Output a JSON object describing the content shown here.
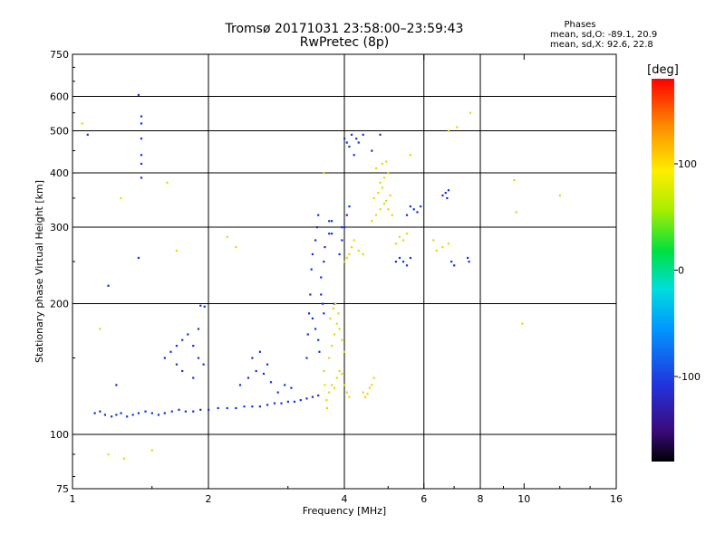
{
  "chart_data": {
    "type": "scatter",
    "title": "Tromsø 20171031 23:58:00–23:59:43",
    "subtitle": "RwPretec (8p)",
    "stats": {
      "title": "Phases",
      "o_line": "mean, sd,O: -89.1, 20.9",
      "x_line": "mean, sd,X:  92.6, 22.8"
    },
    "xlabel": "Frequency [MHz]",
    "ylabel": "Stationary phase Virtual Height [km]",
    "xscale": "log",
    "yscale": "log",
    "xlim": [
      1,
      16
    ],
    "ylim": [
      75,
      750
    ],
    "xticks": [
      1,
      2,
      4,
      6,
      8,
      10,
      16
    ],
    "xtick_labels": [
      "1",
      "2",
      "4",
      "6",
      "8",
      "10",
      "16"
    ],
    "xgrid": [
      2,
      4,
      6,
      8
    ],
    "yticks": [
      75,
      100,
      200,
      300,
      400,
      500,
      600,
      750
    ],
    "ytick_labels": [
      "75",
      "100",
      "200",
      "300",
      "400",
      "500",
      "600",
      "750"
    ],
    "ygrid": [
      100,
      200,
      300,
      400,
      500,
      600
    ],
    "colorbar": {
      "label": "[deg]",
      "range": [
        -180,
        180
      ],
      "ticks": [
        100,
        0,
        -100
      ],
      "tick_labels": [
        "100",
        "0",
        "-100"
      ]
    },
    "colors": {
      "o_mode": "#1030e0",
      "x_mode": "#e8d800"
    },
    "series": [
      {
        "mode": "O",
        "points": [
          [
            1.12,
            112
          ],
          [
            1.15,
            113
          ],
          [
            1.18,
            111
          ],
          [
            1.22,
            110
          ],
          [
            1.25,
            111
          ],
          [
            1.28,
            112
          ],
          [
            1.32,
            110
          ],
          [
            1.36,
            111
          ],
          [
            1.4,
            112
          ],
          [
            1.45,
            113
          ],
          [
            1.5,
            112
          ],
          [
            1.55,
            111
          ],
          [
            1.6,
            112
          ],
          [
            1.66,
            113
          ],
          [
            1.72,
            114
          ],
          [
            1.78,
            113
          ],
          [
            1.85,
            113
          ],
          [
            1.92,
            114
          ],
          [
            2.0,
            114
          ],
          [
            2.1,
            115
          ],
          [
            2.2,
            115
          ],
          [
            2.3,
            115
          ],
          [
            2.4,
            116
          ],
          [
            2.5,
            116
          ],
          [
            2.6,
            116
          ],
          [
            2.7,
            117
          ],
          [
            2.8,
            118
          ],
          [
            2.9,
            118
          ],
          [
            3.0,
            119
          ],
          [
            3.1,
            119
          ],
          [
            3.2,
            120
          ],
          [
            3.3,
            121
          ],
          [
            3.4,
            122
          ],
          [
            3.5,
            123
          ],
          [
            1.6,
            150
          ],
          [
            1.65,
            155
          ],
          [
            1.7,
            160
          ],
          [
            1.75,
            165
          ],
          [
            1.8,
            170
          ],
          [
            1.85,
            160
          ],
          [
            1.9,
            150
          ],
          [
            1.95,
            145
          ],
          [
            1.75,
            140
          ],
          [
            1.85,
            135
          ],
          [
            1.7,
            145
          ],
          [
            1.9,
            175
          ],
          [
            1.92,
            198
          ],
          [
            1.96,
            197
          ],
          [
            2.35,
            130
          ],
          [
            2.45,
            135
          ],
          [
            2.55,
            140
          ],
          [
            2.65,
            138
          ],
          [
            2.75,
            132
          ],
          [
            2.85,
            125
          ],
          [
            2.95,
            130
          ],
          [
            3.05,
            128
          ],
          [
            2.5,
            150
          ],
          [
            2.6,
            155
          ],
          [
            2.7,
            145
          ],
          [
            3.3,
            150
          ],
          [
            3.32,
            170
          ],
          [
            3.34,
            190
          ],
          [
            3.36,
            210
          ],
          [
            3.38,
            240
          ],
          [
            3.4,
            260
          ],
          [
            3.45,
            280
          ],
          [
            3.48,
            300
          ],
          [
            3.5,
            320
          ],
          [
            3.55,
            230
          ],
          [
            3.6,
            250
          ],
          [
            3.62,
            270
          ],
          [
            3.7,
            290
          ],
          [
            3.75,
            310
          ],
          [
            3.4,
            185
          ],
          [
            3.45,
            175
          ],
          [
            3.5,
            165
          ],
          [
            3.52,
            155
          ],
          [
            3.55,
            210
          ],
          [
            3.58,
            200
          ],
          [
            3.6,
            190
          ],
          [
            3.9,
            260
          ],
          [
            3.95,
            280
          ],
          [
            4.0,
            300
          ],
          [
            4.05,
            320
          ],
          [
            4.1,
            335
          ],
          [
            3.95,
            300
          ],
          [
            4.0,
            480
          ],
          [
            4.05,
            470
          ],
          [
            4.1,
            460
          ],
          [
            4.15,
            490
          ],
          [
            4.2,
            440
          ],
          [
            4.25,
            480
          ],
          [
            4.3,
            470
          ],
          [
            4.4,
            490
          ],
          [
            4.6,
            450
          ],
          [
            4.8,
            490
          ],
          [
            5.6,
            335
          ],
          [
            5.7,
            330
          ],
          [
            5.8,
            325
          ],
          [
            5.9,
            335
          ],
          [
            5.5,
            320
          ],
          [
            6.6,
            355
          ],
          [
            6.7,
            360
          ],
          [
            6.75,
            350
          ],
          [
            6.8,
            365
          ],
          [
            5.2,
            250
          ],
          [
            5.3,
            255
          ],
          [
            5.4,
            250
          ],
          [
            5.5,
            245
          ],
          [
            5.6,
            255
          ],
          [
            6.9,
            250
          ],
          [
            7.0,
            245
          ],
          [
            7.5,
            255
          ],
          [
            7.55,
            250
          ],
          [
            1.42,
            540
          ],
          [
            1.42,
            520
          ],
          [
            1.42,
            480
          ],
          [
            1.42,
            440
          ],
          [
            1.42,
            420
          ],
          [
            1.42,
            390
          ],
          [
            1.08,
            490
          ],
          [
            1.4,
            605
          ],
          [
            1.4,
            255
          ],
          [
            1.2,
            220
          ],
          [
            1.25,
            130
          ],
          [
            3.7,
            310
          ],
          [
            3.75,
            290
          ],
          [
            3.8,
            200
          ]
        ]
      },
      {
        "mode": "X",
        "points": [
          [
            3.65,
            120
          ],
          [
            3.7,
            125
          ],
          [
            3.75,
            130
          ],
          [
            3.8,
            128
          ],
          [
            3.85,
            135
          ],
          [
            3.9,
            140
          ],
          [
            3.95,
            138
          ],
          [
            4.0,
            130
          ],
          [
            4.05,
            125
          ],
          [
            4.1,
            122
          ],
          [
            3.7,
            150
          ],
          [
            3.75,
            160
          ],
          [
            3.8,
            170
          ],
          [
            3.85,
            180
          ],
          [
            3.9,
            175
          ],
          [
            3.95,
            165
          ],
          [
            4.0,
            155
          ],
          [
            3.72,
            185
          ],
          [
            3.78,
            195
          ],
          [
            3.82,
            200
          ],
          [
            3.88,
            190
          ],
          [
            3.6,
            140
          ],
          [
            3.62,
            130
          ],
          [
            3.66,
            115
          ],
          [
            4.4,
            125
          ],
          [
            4.45,
            122
          ],
          [
            4.5,
            124
          ],
          [
            4.55,
            128
          ],
          [
            4.6,
            130
          ],
          [
            4.65,
            135
          ],
          [
            4.0,
            250
          ],
          [
            4.05,
            255
          ],
          [
            4.1,
            260
          ],
          [
            4.15,
            270
          ],
          [
            4.2,
            280
          ],
          [
            4.3,
            265
          ],
          [
            4.4,
            260
          ],
          [
            4.6,
            310
          ],
          [
            4.7,
            320
          ],
          [
            4.8,
            330
          ],
          [
            4.9,
            340
          ],
          [
            5.0,
            330
          ],
          [
            5.1,
            320
          ],
          [
            4.65,
            350
          ],
          [
            4.75,
            360
          ],
          [
            4.85,
            370
          ],
          [
            4.95,
            345
          ],
          [
            5.05,
            355
          ],
          [
            4.8,
            380
          ],
          [
            4.9,
            390
          ],
          [
            5.0,
            400
          ],
          [
            4.7,
            410
          ],
          [
            4.85,
            420
          ],
          [
            4.95,
            425
          ],
          [
            5.3,
            285
          ],
          [
            5.4,
            280
          ],
          [
            5.5,
            290
          ],
          [
            5.2,
            275
          ],
          [
            6.4,
            265
          ],
          [
            6.6,
            270
          ],
          [
            6.8,
            275
          ],
          [
            6.3,
            280
          ],
          [
            3.6,
            400
          ],
          [
            5.6,
            440
          ],
          [
            6.8,
            500
          ],
          [
            7.1,
            510
          ],
          [
            7.6,
            550
          ],
          [
            9.5,
            385
          ],
          [
            9.6,
            325
          ],
          [
            9.9,
            180
          ],
          [
            12.0,
            355
          ],
          [
            1.62,
            380
          ],
          [
            1.28,
            350
          ],
          [
            1.05,
            520
          ],
          [
            1.2,
            90
          ],
          [
            1.3,
            88
          ],
          [
            1.5,
            92
          ],
          [
            1.15,
            175
          ],
          [
            1.7,
            265
          ],
          [
            2.2,
            285
          ],
          [
            2.3,
            270
          ]
        ]
      }
    ]
  }
}
